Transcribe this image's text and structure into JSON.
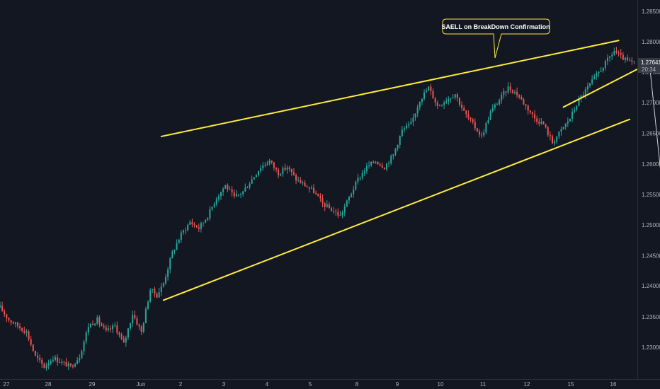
{
  "colors": {
    "background": "#131722",
    "axis_text": "#b2b5be",
    "bullish": "#26a69a",
    "bearish": "#ef5350",
    "trendline": "#ffeb3b",
    "projection": "#d1d4dc",
    "price_badge_bg": "#363a45",
    "callout_bg": "#131722",
    "callout_border": "#ffeb3b"
  },
  "annotation": {
    "text": "SAELL on BreakDown Confirmation"
  },
  "price_badge": {
    "price": "1.27641",
    "countdown": "20:34"
  },
  "chart_data": {
    "type": "candlestick",
    "title": "",
    "xlabel": "",
    "ylabel": "",
    "grid": false,
    "x_ticks": [
      "27",
      "28",
      "29",
      "Jun",
      "2",
      "3",
      "4",
      "5",
      "8",
      "9",
      "10",
      "11",
      "12",
      "15",
      "16"
    ],
    "y_ticks": [
      "1.23000",
      "1.23500",
      "1.24000",
      "1.24500",
      "1.25000",
      "1.25500",
      "1.26000",
      "1.26500",
      "1.27000",
      "1.27500",
      "1.28000",
      "1.28500"
    ],
    "ylim": [
      1.2255,
      1.2875
    ],
    "price_path": [
      [
        0,
        1.2365
      ],
      [
        4,
        1.2345
      ],
      [
        8,
        1.2335
      ],
      [
        12,
        1.2325
      ],
      [
        16,
        1.2285
      ],
      [
        20,
        1.2268
      ],
      [
        24,
        1.2283
      ],
      [
        28,
        1.2275
      ],
      [
        32,
        1.2268
      ],
      [
        36,
        1.2285
      ],
      [
        40,
        1.2335
      ],
      [
        44,
        1.2345
      ],
      [
        48,
        1.2325
      ],
      [
        52,
        1.2335
      ],
      [
        56,
        1.2305
      ],
      [
        60,
        1.2355
      ],
      [
        64,
        1.2325
      ],
      [
        68,
        1.2395
      ],
      [
        71,
        1.2385
      ],
      [
        74,
        1.2405
      ],
      [
        78,
        1.2455
      ],
      [
        82,
        1.2485
      ],
      [
        86,
        1.2505
      ],
      [
        90,
        1.2495
      ],
      [
        94,
        1.2515
      ],
      [
        98,
        1.2545
      ],
      [
        102,
        1.2565
      ],
      [
        106,
        1.2545
      ],
      [
        110,
        1.2555
      ],
      [
        114,
        1.2575
      ],
      [
        118,
        1.2595
      ],
      [
        122,
        1.2605
      ],
      [
        126,
        1.2585
      ],
      [
        130,
        1.2595
      ],
      [
        134,
        1.2575
      ],
      [
        138,
        1.2565
      ],
      [
        142,
        1.2555
      ],
      [
        146,
        1.2535
      ],
      [
        150,
        1.2525
      ],
      [
        154,
        1.2515
      ],
      [
        158,
        1.2545
      ],
      [
        162,
        1.2575
      ],
      [
        166,
        1.2595
      ],
      [
        170,
        1.2605
      ],
      [
        174,
        1.2595
      ],
      [
        178,
        1.2615
      ],
      [
        182,
        1.2655
      ],
      [
        186,
        1.2665
      ],
      [
        190,
        1.2705
      ],
      [
        194,
        1.2725
      ],
      [
        198,
        1.2695
      ],
      [
        202,
        1.2705
      ],
      [
        206,
        1.2715
      ],
      [
        210,
        1.2685
      ],
      [
        214,
        1.2665
      ],
      [
        218,
        1.2645
      ],
      [
        222,
        1.2685
      ],
      [
        226,
        1.2705
      ],
      [
        230,
        1.2725
      ],
      [
        234,
        1.2715
      ],
      [
        238,
        1.2695
      ],
      [
        242,
        1.2675
      ],
      [
        246,
        1.2665
      ],
      [
        250,
        1.2635
      ],
      [
        254,
        1.2655
      ],
      [
        258,
        1.2675
      ],
      [
        262,
        1.2705
      ],
      [
        266,
        1.2725
      ],
      [
        270,
        1.2745
      ],
      [
        274,
        1.2765
      ],
      [
        278,
        1.2785
      ],
      [
        281,
        1.2775
      ],
      [
        284,
        1.2768
      ],
      [
        287,
        1.2765
      ]
    ],
    "annotations": [
      {
        "kind": "line",
        "label": "upper resistance",
        "from": [
          73,
          1.2645
        ],
        "to": [
          280,
          1.2802
        ]
      },
      {
        "kind": "line",
        "label": "lower support",
        "from": [
          74,
          1.2377
        ],
        "to": [
          285,
          1.2673
        ]
      },
      {
        "kind": "line",
        "label": "inner support",
        "from": [
          255,
          1.2693
        ],
        "to": [
          289,
          1.2756
        ]
      },
      {
        "kind": "arrow",
        "label": "bearish projection",
        "from": [
          294,
          1.2762
        ],
        "to": [
          305,
          1.238
        ]
      }
    ]
  }
}
